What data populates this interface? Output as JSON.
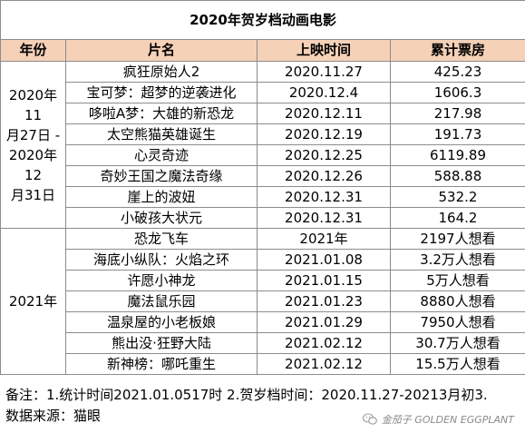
{
  "title": "2020年贺岁档动画电影",
  "headers": [
    "年份",
    "片名",
    "上映时间",
    "累计票房"
  ],
  "groups": [
    {
      "year_lines": [
        "2020年11",
        "月27日 -",
        "2020年12",
        "月31日"
      ],
      "rows": [
        {
          "name": "疯狂原始人2",
          "date": "2020.11.27",
          "box": "425.23"
        },
        {
          "name": "宝可梦：超梦的逆袭进化",
          "date": "2020.12.4",
          "box": "1606.3"
        },
        {
          "name": "哆啦A梦：大雄的新恐龙",
          "date": "2020.12.11",
          "box": "217.98"
        },
        {
          "name": "太空熊猫英雄诞生",
          "date": "2020.12.19",
          "box": "191.73"
        },
        {
          "name": "心灵奇迹",
          "date": "2020.12.25",
          "box": "6119.89"
        },
        {
          "name": "奇妙王国之魔法奇缘",
          "date": "2020.12.26",
          "box": "588.88"
        },
        {
          "name": "崖上的波妞",
          "date": "2020.12.31",
          "box": "532.2"
        },
        {
          "name": "小破孩大状元",
          "date": "2020.12.31",
          "box": "164.2"
        }
      ]
    },
    {
      "year_lines": [
        "2021年"
      ],
      "rows": [
        {
          "name": "恐龙飞车",
          "date": "2021年",
          "box": "2197人想看"
        },
        {
          "name": "海底小纵队：火焰之环",
          "date": "2021.01.08",
          "box": "3.2万人想看"
        },
        {
          "name": "许愿小神龙",
          "date": "2021.01.15",
          "box": "5万人想看"
        },
        {
          "name": "魔法鼠乐园",
          "date": "2021.01.23",
          "box": "8880人想看"
        },
        {
          "name": "温泉屋的小老板娘",
          "date": "2021.01.29",
          "box": "7950人想看"
        },
        {
          "name": "熊出没·狂野大陆",
          "date": "2021.02.12",
          "box": "30.7万人想看"
        },
        {
          "name": "新神榜：哪吒重生",
          "date": "2021.02.12",
          "box": "15.5万人想看"
        }
      ]
    }
  ],
  "notes": {
    "line1": "备注：1.统计时间2021.01.0517时 2.贺岁档时间：2020.11.27-20213月初3.",
    "line2": "数据来源：猫眼"
  },
  "watermark": {
    "text": "金茄子 GOLDEN EGGPLANT",
    "icon": "wechat-icon"
  }
}
